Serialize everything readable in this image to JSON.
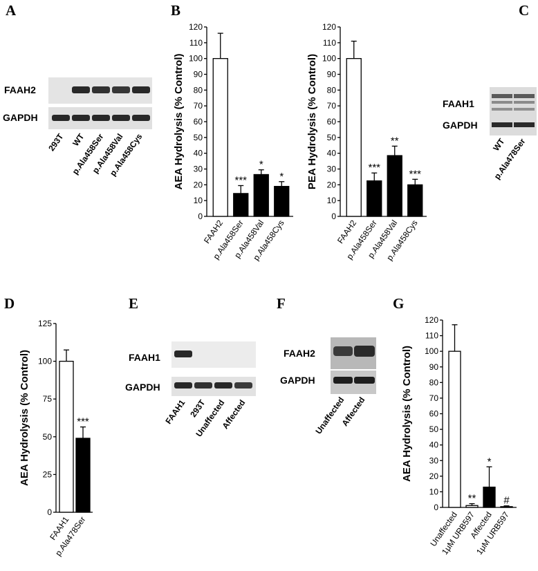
{
  "panels": {
    "A": {
      "letter": "A",
      "rows": [
        "FAAH2",
        "GAPDH"
      ],
      "lanes": [
        "293T",
        "WT",
        "p.Ala458Ser",
        "p.Ala458Val",
        "p.Ala458Cys"
      ],
      "band_strength": [
        [
          0.0,
          1.0,
          0.9,
          0.85,
          1.0
        ],
        [
          1.0,
          1.0,
          1.0,
          1.0,
          1.0
        ]
      ]
    },
    "C": {
      "letter": "C",
      "rows": [
        "FAAH1",
        "GAPDH"
      ],
      "lanes": [
        "WT",
        "p.Ala478Ser"
      ]
    },
    "E": {
      "letter": "E",
      "rows": [
        "FAAH1",
        "GAPDH"
      ],
      "lanes": [
        "FAAH1",
        "293T",
        "Unaffected",
        "Affected"
      ],
      "band_strength": [
        [
          1.0,
          0.0,
          0.0,
          0.0
        ],
        [
          1.0,
          0.9,
          1.0,
          0.8
        ]
      ]
    },
    "F": {
      "letter": "F",
      "rows": [
        "FAAH2",
        "GAPDH"
      ],
      "lanes": [
        "Unaffected",
        "Affected"
      ]
    }
  },
  "chart_data": [
    {
      "id": "B1",
      "panel_letter": "B",
      "type": "bar",
      "ylabel": "AEA Hydrolysis (% Control)",
      "ylim": [
        0,
        120
      ],
      "yticks": [
        "0",
        "10",
        "20",
        "30",
        "40",
        "50",
        "60",
        "70",
        "80",
        "90",
        "100",
        "110",
        "120"
      ],
      "categories": [
        "FAAH2",
        "p.Ala458Ser",
        "p.Ala458Val",
        "p.Ala458Cys"
      ],
      "values": [
        100,
        14.5,
        26.5,
        19
      ],
      "errors": [
        16,
        5,
        3,
        3
      ],
      "fills": [
        "#ffffff",
        "#000000",
        "#000000",
        "#000000"
      ],
      "annotations": [
        "",
        "***",
        "*",
        "*"
      ]
    },
    {
      "id": "B2",
      "type": "bar",
      "ylabel": "PEA Hydrolysis (% Control)",
      "ylim": [
        0,
        120
      ],
      "yticks": [
        "0",
        "10",
        "20",
        "30",
        "40",
        "50",
        "60",
        "70",
        "80",
        "90",
        "100",
        "110",
        "120"
      ],
      "categories": [
        "FAAH2",
        "p.Ala458Ser",
        "p.Ala458Val",
        "p.Ala458Cys"
      ],
      "values": [
        100,
        22.5,
        38.5,
        20
      ],
      "errors": [
        11,
        5,
        6,
        3.5
      ],
      "fills": [
        "#ffffff",
        "#000000",
        "#000000",
        "#000000"
      ],
      "annotations": [
        "",
        "***",
        "**",
        "***"
      ]
    },
    {
      "id": "D",
      "panel_letter": "D",
      "type": "bar",
      "ylabel": "AEA Hydrolysis (% Control)",
      "ylim": [
        0,
        125
      ],
      "yticks": [
        "0",
        "25",
        "50",
        "75",
        "100",
        "125"
      ],
      "categories": [
        "FAAH1",
        "p.Ala478Ser"
      ],
      "values": [
        100,
        49
      ],
      "errors": [
        7.5,
        7.5
      ],
      "fills": [
        "#ffffff",
        "#000000"
      ],
      "annotations": [
        "",
        "***"
      ]
    },
    {
      "id": "G",
      "panel_letter": "G",
      "type": "bar",
      "ylabel": "AEA Hydrolysis (% Control)",
      "ylim": [
        0,
        120
      ],
      "yticks": [
        "0",
        "10",
        "20",
        "30",
        "40",
        "50",
        "60",
        "70",
        "80",
        "90",
        "100",
        "110",
        "120"
      ],
      "categories": [
        "Unaffected",
        "1μM URB597",
        "Affected",
        "1μM URB597"
      ],
      "values": [
        100,
        1.2,
        13,
        0.5
      ],
      "errors": [
        17,
        1.2,
        13,
        0.5
      ],
      "fills": [
        "#ffffff",
        "#ffffff",
        "#000000",
        "#000000"
      ],
      "annotations": [
        "",
        "**",
        "*",
        "#"
      ]
    }
  ]
}
